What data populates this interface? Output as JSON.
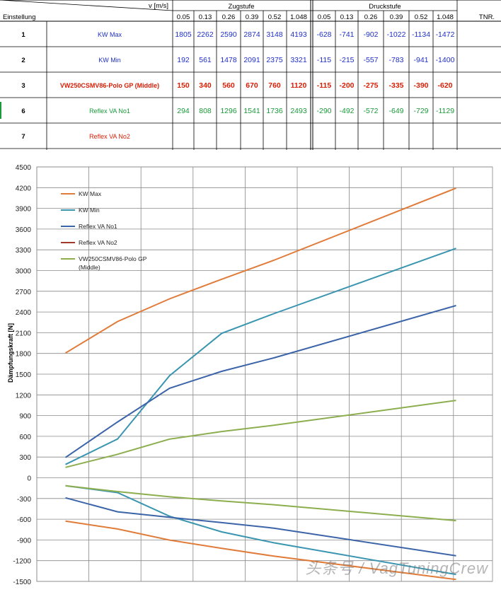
{
  "table": {
    "header_v": "v [m/s]",
    "header_zug": "Zugstufe",
    "header_druck": "Druckstufe",
    "header_einstellung": "Einstellung",
    "header_tnr": "TNR.",
    "speeds": [
      "0.05",
      "0.13",
      "0.26",
      "0.39",
      "0.52",
      "1.048"
    ],
    "rows": [
      {
        "einst": "1",
        "name": "KW Max",
        "color": "#1f2fc8",
        "bold": false,
        "zug": [
          "1805",
          "2262",
          "2590",
          "2874",
          "3148",
          "4193"
        ],
        "druck": [
          "-628",
          "-741",
          "-902",
          "-1022",
          "-1134",
          "-1472"
        ]
      },
      {
        "einst": "2",
        "name": "KW Min",
        "color": "#1f2fc8",
        "bold": false,
        "zug": [
          "192",
          "561",
          "1478",
          "2091",
          "2375",
          "3321"
        ],
        "druck": [
          "-115",
          "-215",
          "-557",
          "-783",
          "-941",
          "-1400"
        ]
      },
      {
        "einst": "3",
        "name": "VW250CSMV86-Polo GP (Middle)",
        "color": "#d81e05",
        "bold": true,
        "zug": [
          "150",
          "340",
          "560",
          "670",
          "760",
          "1120"
        ],
        "druck": [
          "-115",
          "-200",
          "-275",
          "-335",
          "-390",
          "-620"
        ]
      },
      {
        "einst": "6",
        "name": "Reflex VA No1",
        "color": "#1a9a3a",
        "bold": false,
        "zug": [
          "294",
          "808",
          "1296",
          "1541",
          "1736",
          "2493"
        ],
        "druck": [
          "-290",
          "-492",
          "-572",
          "-649",
          "-729",
          "-1129"
        ]
      },
      {
        "einst": "7",
        "name": "Reflex VA No2",
        "color": "#d81e05",
        "bold": false,
        "zug": [
          "",
          "",
          "",
          "",
          "",
          ""
        ],
        "druck": [
          "",
          "",
          "",
          "",
          "",
          ""
        ]
      }
    ]
  },
  "chart_data": {
    "type": "line",
    "ylabel": "Dämpfungskraft [N]",
    "ylim": [
      -1500,
      4500
    ],
    "yticks": [
      4500,
      4200,
      3900,
      3600,
      3300,
      3000,
      2700,
      2400,
      2100,
      1800,
      1500,
      1200,
      900,
      600,
      300,
      0,
      -300,
      -600,
      -900,
      -1200,
      -1500
    ],
    "x": [
      0.05,
      0.13,
      0.26,
      0.39,
      0.52,
      1.048
    ],
    "grid": true,
    "legend_position": "top-left",
    "series": [
      {
        "name": "KW Max",
        "color": "#e07b39",
        "zug": [
          1805,
          2262,
          2590,
          2874,
          3148,
          4193
        ],
        "druck": [
          -628,
          -741,
          -902,
          -1022,
          -1134,
          -1472
        ]
      },
      {
        "name": "KW Min",
        "color": "#3a95b0",
        "zug": [
          192,
          561,
          1478,
          2091,
          2375,
          3321
        ],
        "druck": [
          -115,
          -215,
          -557,
          -783,
          -941,
          -1400
        ]
      },
      {
        "name": "Reflex VA No1",
        "color": "#3c64a8",
        "zug": [
          294,
          808,
          1296,
          1541,
          1736,
          2493
        ],
        "druck": [
          -290,
          -492,
          -572,
          -649,
          -729,
          -1129
        ]
      },
      {
        "name": "Reflex VA No2",
        "color": "#a03a2a",
        "zug": [],
        "druck": []
      },
      {
        "name": "VW250CSMV86-Polo GP (Middle)",
        "color": "#8cae4e",
        "zug": [
          150,
          340,
          560,
          670,
          760,
          1120
        ],
        "druck": [
          -115,
          -200,
          -275,
          -335,
          -390,
          -620
        ]
      }
    ]
  },
  "watermark": "头条号 / VagTuningCrew"
}
